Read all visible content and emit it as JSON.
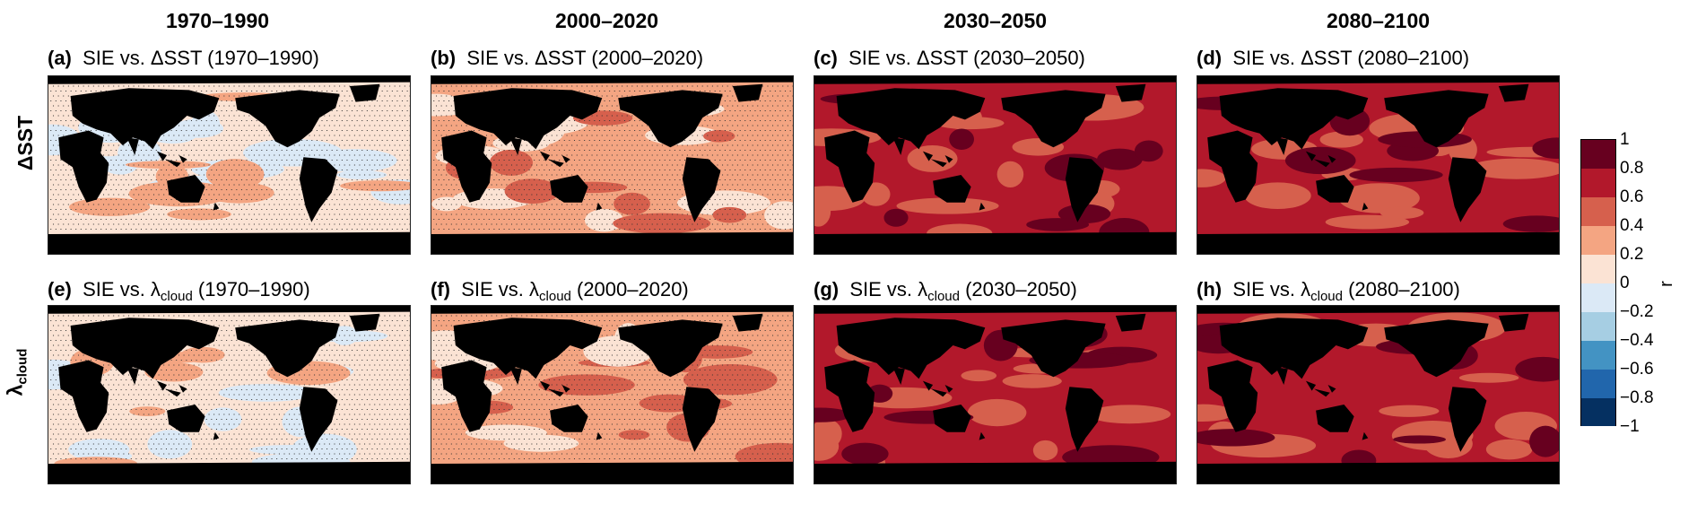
{
  "figure": {
    "column_headers": [
      "1970–1990",
      "2000–2020",
      "2030–2050",
      "2080–2100"
    ],
    "row_labels": {
      "sst": "ΔSST",
      "cloud_base": "λ",
      "cloud_sub": "cloud"
    },
    "panels": [
      {
        "letter": "(a)",
        "prefix": "SIE vs. ΔSST",
        "sub": "",
        "period": "(1970–1990)"
      },
      {
        "letter": "(b)",
        "prefix": "SIE vs. ΔSST",
        "sub": "",
        "period": "(2000–2020)"
      },
      {
        "letter": "(c)",
        "prefix": "SIE vs. ΔSST",
        "sub": "",
        "period": "(2030–2050)"
      },
      {
        "letter": "(d)",
        "prefix": "SIE vs. ΔSST",
        "sub": "",
        "period": "(2080–2100)"
      },
      {
        "letter": "(e)",
        "prefix": "SIE vs. λ",
        "sub": "cloud",
        "period": "(1970–1990)"
      },
      {
        "letter": "(f)",
        "prefix": "SIE vs. λ",
        "sub": "cloud",
        "period": "(2000–2020)"
      },
      {
        "letter": "(g)",
        "prefix": "SIE vs. λ",
        "sub": "cloud",
        "period": "(2030–2050)"
      },
      {
        "letter": "(h)",
        "prefix": "SIE vs. λ",
        "sub": "cloud",
        "period": "(2080–2100)"
      }
    ]
  },
  "chart_data": {
    "type": "heatmap",
    "colorbar": {
      "label": "r",
      "range": [
        -1,
        1
      ],
      "ticks": [
        "1",
        "0.8",
        "0.6",
        "0.4",
        "0.2",
        "0",
        "−0.2",
        "−0.4",
        "−0.6",
        "−0.8",
        "−1"
      ],
      "bins": [
        {
          "min": 0.8,
          "max": 1.0,
          "color": "#67001f"
        },
        {
          "min": 0.6,
          "max": 0.8,
          "color": "#b2182b"
        },
        {
          "min": 0.4,
          "max": 0.6,
          "color": "#d6604d"
        },
        {
          "min": 0.2,
          "max": 0.4,
          "color": "#f4a582"
        },
        {
          "min": 0.0,
          "max": 0.2,
          "color": "#fbe3d4"
        },
        {
          "min": -0.2,
          "max": 0.0,
          "color": "#dbe9f6"
        },
        {
          "min": -0.4,
          "max": -0.2,
          "color": "#a6cee3"
        },
        {
          "min": -0.6,
          "max": -0.4,
          "color": "#4393c3"
        },
        {
          "min": -0.8,
          "max": -0.6,
          "color": "#2166ac"
        },
        {
          "min": -1.0,
          "max": -0.8,
          "color": "#053061"
        }
      ]
    },
    "land_color": "#000000",
    "stippling": "not significant",
    "panels": [
      {
        "id": "a",
        "variable": "ΔSST",
        "period": "1970–1990",
        "dominant_r_bin": 0.0,
        "secondary_r_bin": -0.2,
        "accent_r_bin": 0.2,
        "stippled": true
      },
      {
        "id": "b",
        "variable": "ΔSST",
        "period": "2000–2020",
        "dominant_r_bin": 0.2,
        "secondary_r_bin": 0.0,
        "accent_r_bin": 0.4,
        "stippled": true
      },
      {
        "id": "c",
        "variable": "ΔSST",
        "period": "2030–2050",
        "dominant_r_bin": 0.6,
        "secondary_r_bin": 0.4,
        "accent_r_bin": 0.8,
        "stippled": false
      },
      {
        "id": "d",
        "variable": "ΔSST",
        "period": "2080–2100",
        "dominant_r_bin": 0.6,
        "secondary_r_bin": 0.4,
        "accent_r_bin": 0.8,
        "stippled": false
      },
      {
        "id": "e",
        "variable": "λcloud",
        "period": "1970–1990",
        "dominant_r_bin": 0.0,
        "secondary_r_bin": -0.2,
        "accent_r_bin": 0.2,
        "stippled": true
      },
      {
        "id": "f",
        "variable": "λcloud",
        "period": "2000–2020",
        "dominant_r_bin": 0.2,
        "secondary_r_bin": 0.4,
        "accent_r_bin": 0.0,
        "stippled": true
      },
      {
        "id": "g",
        "variable": "λcloud",
        "period": "2030–2050",
        "dominant_r_bin": 0.6,
        "secondary_r_bin": 0.4,
        "accent_r_bin": 0.8,
        "stippled": false
      },
      {
        "id": "h",
        "variable": "λcloud",
        "period": "2080–2100",
        "dominant_r_bin": 0.6,
        "secondary_r_bin": 0.4,
        "accent_r_bin": 0.8,
        "stippled": false
      }
    ]
  }
}
